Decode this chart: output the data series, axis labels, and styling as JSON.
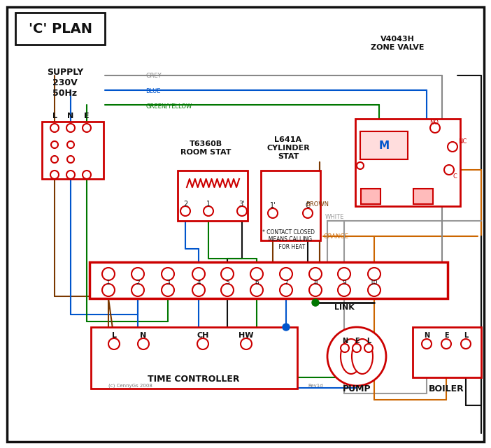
{
  "bg": "#ffffff",
  "red": "#cc0000",
  "blue": "#0055cc",
  "green": "#007700",
  "brown": "#7a3800",
  "grey": "#888888",
  "orange": "#cc6600",
  "black": "#111111",
  "darkred": "#990000",
  "title": "'C' PLAN",
  "supply_label": "SUPPLY\n230V\n50Hz",
  "zv_label": "V4043H\nZONE VALVE",
  "rs_label": "T6360B\nROOM STAT",
  "cs_label": "L641A\nCYLINDER\nSTAT",
  "tc_label": "TIME CONTROLLER",
  "pump_label": "PUMP",
  "boiler_label": "BOILER",
  "link_label": "LINK",
  "copy_label": "(c) CennyGs 2008",
  "rev_label": "Rev1d",
  "grey_label": "GREY",
  "blue_label": "BLUE",
  "gy_label": "GREEN/YELLOW",
  "brown_label": "BROWN",
  "white_label": "WHITE",
  "orange_label": "ORANGE"
}
